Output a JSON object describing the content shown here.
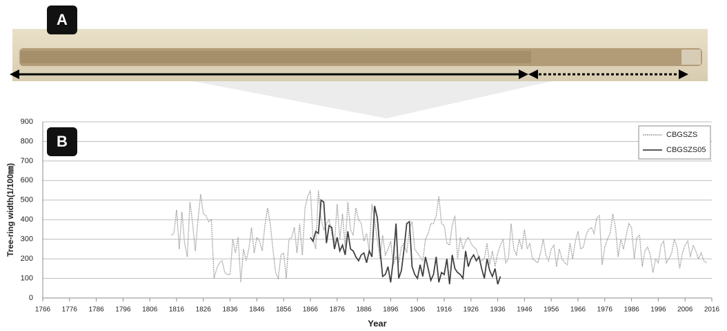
{
  "panel_labels": [
    "A",
    "B"
  ],
  "chart_data": {
    "type": "line",
    "xlabel": "Year",
    "ylabel": "Tree-ring width(1/100㎜)",
    "xlim": [
      1766,
      2016
    ],
    "xticks": [
      1766,
      1776,
      1786,
      1796,
      1806,
      1816,
      1826,
      1836,
      1846,
      1856,
      1866,
      1876,
      1886,
      1896,
      1906,
      1916,
      1926,
      1936,
      1946,
      1956,
      1966,
      1976,
      1986,
      1996,
      2006,
      2016
    ],
    "ylim": [
      0,
      900
    ],
    "yticks": [
      0,
      100,
      200,
      300,
      400,
      500,
      600,
      700,
      800,
      900
    ],
    "grid": true,
    "legend": "upper right",
    "series": [
      {
        "name": "CBGSZS",
        "color": "#a8a8a8",
        "style": "dotted",
        "x": [
          1814,
          1815,
          1816,
          1817,
          1818,
          1819,
          1820,
          1821,
          1822,
          1823,
          1824,
          1825,
          1826,
          1827,
          1828,
          1829,
          1830,
          1831,
          1832,
          1833,
          1834,
          1835,
          1836,
          1837,
          1838,
          1839,
          1840,
          1841,
          1842,
          1843,
          1844,
          1845,
          1846,
          1847,
          1848,
          1849,
          1850,
          1851,
          1852,
          1853,
          1854,
          1855,
          1856,
          1857,
          1858,
          1859,
          1860,
          1861,
          1862,
          1863,
          1864,
          1865,
          1866,
          1867,
          1868,
          1869,
          1870,
          1871,
          1872,
          1873,
          1874,
          1875,
          1876,
          1877,
          1878,
          1879,
          1880,
          1881,
          1882,
          1883,
          1884,
          1885,
          1886,
          1887,
          1888,
          1889,
          1890,
          1891,
          1892,
          1893,
          1894,
          1895,
          1896,
          1897,
          1898,
          1899,
          1900,
          1901,
          1902,
          1903,
          1904,
          1905,
          1906,
          1907,
          1908,
          1909,
          1910,
          1911,
          1912,
          1913,
          1914,
          1915,
          1916,
          1917,
          1918,
          1919,
          1920,
          1921,
          1922,
          1923,
          1924,
          1925,
          1926,
          1927,
          1928,
          1929,
          1930,
          1931,
          1932,
          1933,
          1934,
          1935,
          1936,
          1937,
          1938,
          1939,
          1940,
          1941,
          1942,
          1943,
          1944,
          1945,
          1946,
          1947,
          1948,
          1949,
          1950,
          1951,
          1952,
          1953,
          1954,
          1955,
          1956,
          1957,
          1958,
          1959,
          1960,
          1961,
          1962,
          1963,
          1964,
          1965,
          1966,
          1967,
          1968,
          1969,
          1970,
          1971,
          1972,
          1973,
          1974,
          1975,
          1976,
          1977,
          1978,
          1979,
          1980,
          1981,
          1982,
          1983,
          1984,
          1985,
          1986,
          1987,
          1988,
          1989,
          1990,
          1991,
          1992,
          1993,
          1994,
          1995,
          1996,
          1997,
          1998,
          1999,
          2000,
          2001,
          2002,
          2003,
          2004,
          2005,
          2006,
          2007,
          2008,
          2009,
          2010,
          2011,
          2012,
          2013,
          2014
        ],
        "values": [
          320,
          330,
          450,
          250,
          440,
          280,
          210,
          490,
          380,
          240,
          400,
          530,
          430,
          420,
          390,
          400,
          100,
          150,
          180,
          190,
          130,
          120,
          120,
          300,
          230,
          310,
          80,
          250,
          190,
          250,
          360,
          230,
          310,
          290,
          240,
          370,
          460,
          380,
          250,
          130,
          100,
          220,
          230,
          100,
          300,
          310,
          360,
          230,
          380,
          220,
          460,
          520,
          550,
          300,
          250,
          550,
          400,
          350,
          380,
          400,
          330,
          280,
          480,
          300,
          430,
          260,
          490,
          350,
          320,
          460,
          400,
          380,
          290,
          330,
          240,
          480,
          400,
          300,
          200,
          320,
          220,
          250,
          290,
          170,
          210,
          180,
          260,
          280,
          230,
          350,
          390,
          250,
          230,
          210,
          190,
          300,
          330,
          380,
          380,
          420,
          520,
          380,
          370,
          280,
          270,
          370,
          420,
          200,
          310,
          250,
          290,
          310,
          280,
          260,
          250,
          200,
          190,
          200,
          280,
          170,
          240,
          160,
          230,
          270,
          300,
          180,
          200,
          380,
          250,
          220,
          300,
          250,
          350,
          250,
          280,
          200,
          190,
          180,
          230,
          300,
          220,
          190,
          250,
          270,
          160,
          250,
          200,
          180,
          170,
          280,
          200,
          290,
          340,
          250,
          260,
          320,
          350,
          360,
          330,
          410,
          420,
          170,
          260,
          300,
          330,
          430,
          360,
          210,
          300,
          250,
          320,
          380,
          360,
          200,
          310,
          320,
          160,
          240,
          260,
          220,
          130,
          200,
          180,
          270,
          290,
          180,
          200,
          230,
          300,
          260,
          150,
          230,
          270,
          290,
          210,
          270,
          240,
          200,
          230,
          190,
          180
        ]
      },
      {
        "name": "CBGSZS05",
        "color": "#404040",
        "style": "solid",
        "x": [
          1866,
          1867,
          1868,
          1869,
          1870,
          1871,
          1872,
          1873,
          1874,
          1875,
          1876,
          1877,
          1878,
          1879,
          1880,
          1881,
          1882,
          1883,
          1884,
          1885,
          1886,
          1887,
          1888,
          1889,
          1890,
          1891,
          1892,
          1893,
          1894,
          1895,
          1896,
          1897,
          1898,
          1899,
          1900,
          1901,
          1902,
          1903,
          1904,
          1905,
          1906,
          1907,
          1908,
          1909,
          1910,
          1911,
          1912,
          1913,
          1914,
          1915,
          1916,
          1917,
          1918,
          1919,
          1920,
          1921,
          1922,
          1923,
          1924,
          1925,
          1926,
          1927,
          1928,
          1929,
          1930,
          1931,
          1932,
          1933,
          1934,
          1935,
          1936,
          1937
        ],
        "values": [
          310,
          290,
          340,
          330,
          500,
          490,
          280,
          370,
          360,
          250,
          310,
          240,
          270,
          220,
          340,
          250,
          240,
          210,
          190,
          220,
          230,
          180,
          240,
          210,
          470,
          410,
          250,
          110,
          120,
          160,
          80,
          200,
          380,
          100,
          140,
          250,
          380,
          390,
          160,
          120,
          100,
          170,
          110,
          210,
          150,
          90,
          120,
          210,
          80,
          130,
          120,
          200,
          70,
          220,
          150,
          130,
          120,
          100,
          240,
          160,
          200,
          220,
          190,
          210,
          150,
          100,
          200,
          140,
          110,
          150,
          70,
          110
        ]
      }
    ]
  }
}
